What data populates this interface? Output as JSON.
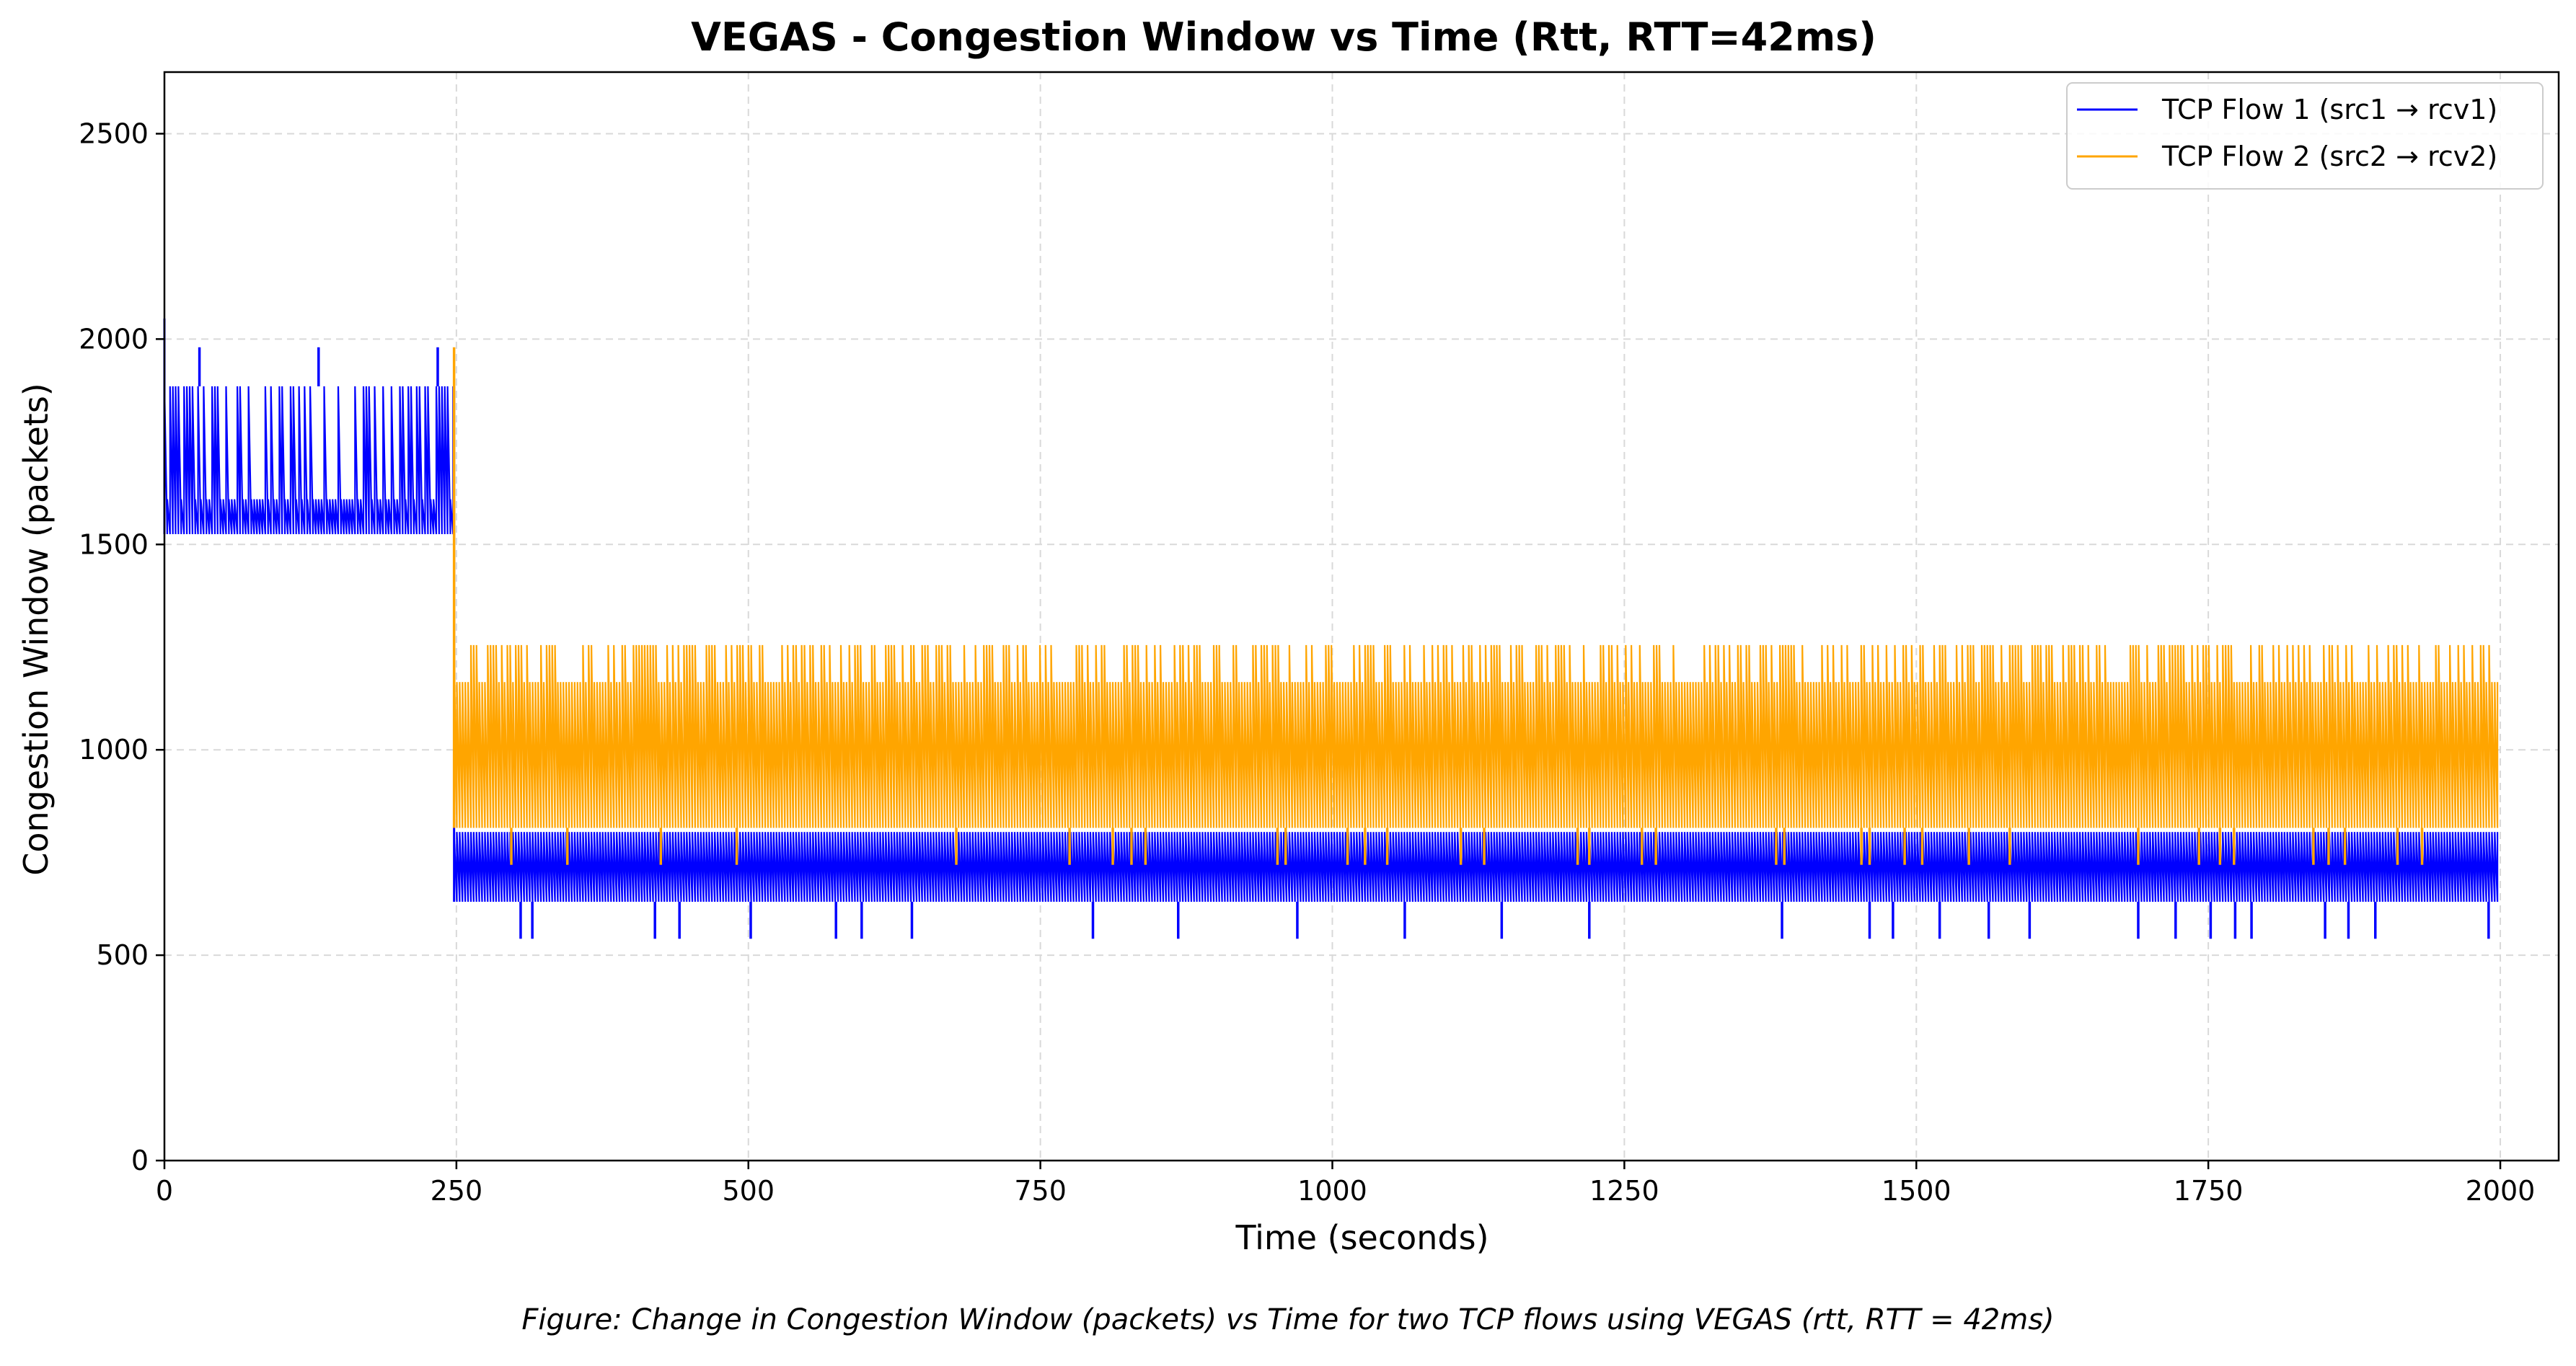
{
  "chart_data": {
    "type": "line",
    "title": "VEGAS - Congestion Window vs Time (Rtt, RTT=42ms)",
    "xlabel": "Time (seconds)",
    "ylabel": "Congestion Window (packets)",
    "xlim": [
      0,
      2050
    ],
    "ylim": [
      0,
      2650
    ],
    "xticks": [
      0,
      250,
      500,
      750,
      1000,
      1250,
      1500,
      1750,
      2000
    ],
    "yticks": [
      0,
      500,
      1000,
      1500,
      2000,
      2500
    ],
    "grid": true,
    "legend_position": "top-right",
    "series": [
      {
        "name": "TCP Flow 1 (src1 → rcv1)",
        "color": "#0000ff",
        "segments": [
          {
            "x_start": 0,
            "x_end": 248,
            "low": 1525,
            "high": 1885,
            "mid": 1610,
            "spikes_high": [
              30,
              132,
              234
            ],
            "spike_high_value": 1980,
            "initial_peak": 2050
          },
          {
            "x_start": 248,
            "x_end": 2000,
            "low": 630,
            "high": 800,
            "dips": [
              305,
              315,
              420,
              441,
              502,
              575,
              597,
              640,
              795,
              868,
              970,
              1062,
              1145,
              1220,
              1385,
              1460,
              1480,
              1520,
              1562,
              1597,
              1690,
              1722,
              1752,
              1773,
              1787,
              1850,
              1870,
              1893,
              1990
            ],
            "dip_value": 540
          }
        ]
      },
      {
        "name": "TCP Flow 2 (src2 → rcv2)",
        "color": "#ffa500",
        "segments": [
          {
            "x_start": 248,
            "x_end": 2000,
            "low": 810,
            "high": 1255,
            "mid": 1165,
            "transition_peak": 1980,
            "dips": [
              297,
              345,
              425,
              490,
              678,
              775,
              812,
              828,
              840,
              953,
              960,
              1013,
              1028,
              1047,
              1110,
              1130,
              1210,
              1220,
              1265,
              1277,
              1380,
              1387,
              1453,
              1460,
              1490,
              1505,
              1545,
              1580,
              1690,
              1742,
              1760,
              1772,
              1840,
              1853,
              1867,
              1912,
              1933
            ],
            "dip_value": 720
          }
        ]
      }
    ]
  },
  "caption": "Figure: Change in Congestion Window (packets) vs Time for two TCP flows using VEGAS (rtt, RTT = 42ms)"
}
